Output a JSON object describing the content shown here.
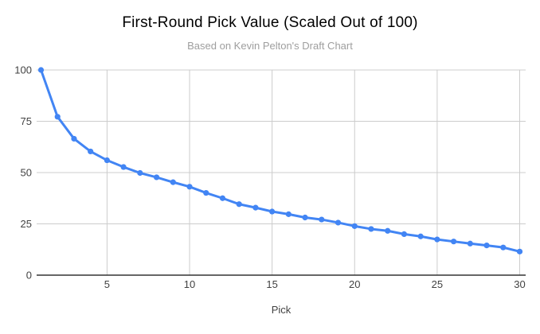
{
  "chart_data": {
    "type": "line",
    "title": "First-Round Pick Value (Scaled Out of 100)",
    "subtitle": "Based on Kevin Pelton's Draft Chart",
    "xlabel": "Pick",
    "ylabel": "",
    "x": [
      1,
      2,
      3,
      4,
      5,
      6,
      7,
      8,
      9,
      10,
      11,
      12,
      13,
      14,
      15,
      16,
      17,
      18,
      19,
      20,
      21,
      22,
      23,
      24,
      25,
      26,
      27,
      28,
      29,
      30
    ],
    "values": [
      100,
      77.2,
      66.5,
      60.3,
      56.0,
      52.7,
      49.8,
      47.7,
      45.3,
      43.1,
      40.1,
      37.5,
      34.6,
      32.9,
      31.0,
      29.7,
      28.1,
      27.1,
      25.6,
      23.9,
      22.5,
      21.6,
      20.0,
      18.9,
      17.4,
      16.4,
      15.4,
      14.5,
      13.5,
      11.5
    ],
    "xticks": [
      5,
      10,
      15,
      20,
      25,
      30
    ],
    "yticks": [
      0,
      25,
      50,
      75,
      100
    ],
    "xlim": [
      1,
      30
    ],
    "ylim": [
      0,
      100
    ],
    "grid": true,
    "legend": "none",
    "colors": {
      "series": "#4285f4",
      "gridline": "#cccccc",
      "axis_line": "#333333",
      "tick_label": "#424242",
      "axis_title": "#424242",
      "title": "#000000",
      "subtitle": "#9e9e9e",
      "background": "#ffffff"
    }
  }
}
